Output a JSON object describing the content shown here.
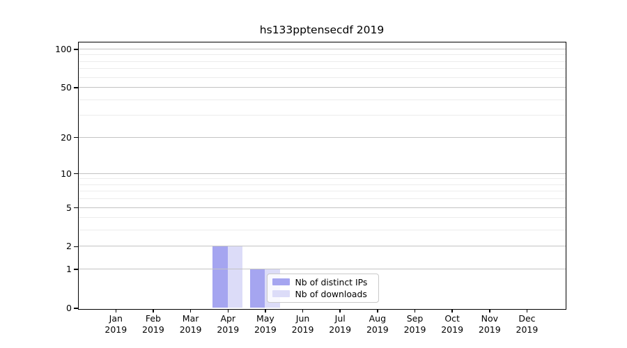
{
  "title": "hs133pptensecdf 2019",
  "chart_data": {
    "type": "bar",
    "title": "hs133pptensecdf 2019",
    "categories": [
      "Jan",
      "Feb",
      "Mar",
      "Apr",
      "May",
      "Jun",
      "Jul",
      "Aug",
      "Sep",
      "Oct",
      "Nov",
      "Dec"
    ],
    "year_label": "2019",
    "series": [
      {
        "name": "Nb of distinct IPs",
        "color": "#a5a5f0",
        "values": [
          0,
          0,
          0,
          2,
          1,
          0,
          0,
          0,
          0,
          0,
          0,
          0
        ]
      },
      {
        "name": "Nb of downloads",
        "color": "#dcdcf8",
        "values": [
          0,
          0,
          0,
          2,
          1,
          0,
          0,
          0,
          0,
          0,
          0,
          0
        ]
      }
    ],
    "xlabel": "",
    "ylabel": "",
    "yscale": "log(1+y)",
    "ylim": [
      0,
      113
    ],
    "yticks": {
      "labels": [
        "0",
        "1",
        "2",
        "5",
        "10",
        "20",
        "50",
        "100"
      ],
      "values": [
        0,
        1,
        2,
        5,
        10,
        20,
        50,
        100
      ]
    },
    "minor_gridline_values": [
      3,
      4,
      6,
      7,
      8,
      9,
      30,
      40,
      60,
      70,
      80,
      90
    ],
    "grid": true,
    "legend_position": "lower-center-right-of-plot",
    "colors": {
      "grid_major": "#c3c3c3",
      "grid_minor": "#ececec",
      "spine": "#000000",
      "background": "#ffffff"
    }
  }
}
